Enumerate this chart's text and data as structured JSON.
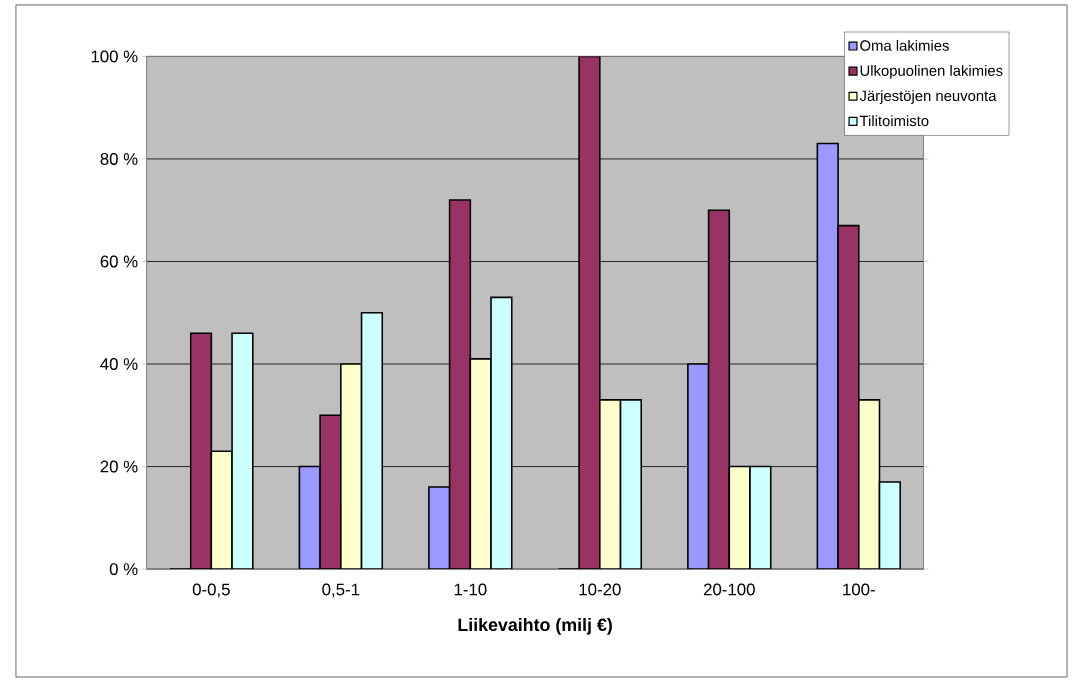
{
  "chart_data": {
    "type": "bar",
    "xlabel": "Liikevaihto (milj €)",
    "categories": [
      "0-0,5",
      "0,5-1",
      "1-10",
      "10-20",
      "20-100",
      "100-"
    ],
    "series": [
      {
        "name": "Oma lakimies",
        "color": "#9999ff",
        "values": [
          0,
          20,
          16,
          0,
          40,
          83
        ]
      },
      {
        "name": "Ulkopuolinen lakimies",
        "color": "#993366",
        "values": [
          46,
          30,
          72,
          100,
          70,
          67
        ]
      },
      {
        "name": "Järjestöjen neuvonta",
        "color": "#ffffcc",
        "values": [
          23,
          40,
          41,
          33,
          20,
          33
        ]
      },
      {
        "name": "Tilitoimisto",
        "color": "#ccffff",
        "values": [
          46,
          50,
          53,
          33,
          20,
          17
        ]
      }
    ],
    "ylim": [
      0,
      100
    ],
    "yticks": [
      {
        "value": 0,
        "label": "0 %"
      },
      {
        "value": 20,
        "label": "20 %"
      },
      {
        "value": 40,
        "label": "40 %"
      },
      {
        "value": 60,
        "label": "60 %"
      },
      {
        "value": 80,
        "label": "80 %"
      },
      {
        "value": 100,
        "label": "100 %"
      }
    ],
    "grid": "y",
    "legend": "top right"
  }
}
